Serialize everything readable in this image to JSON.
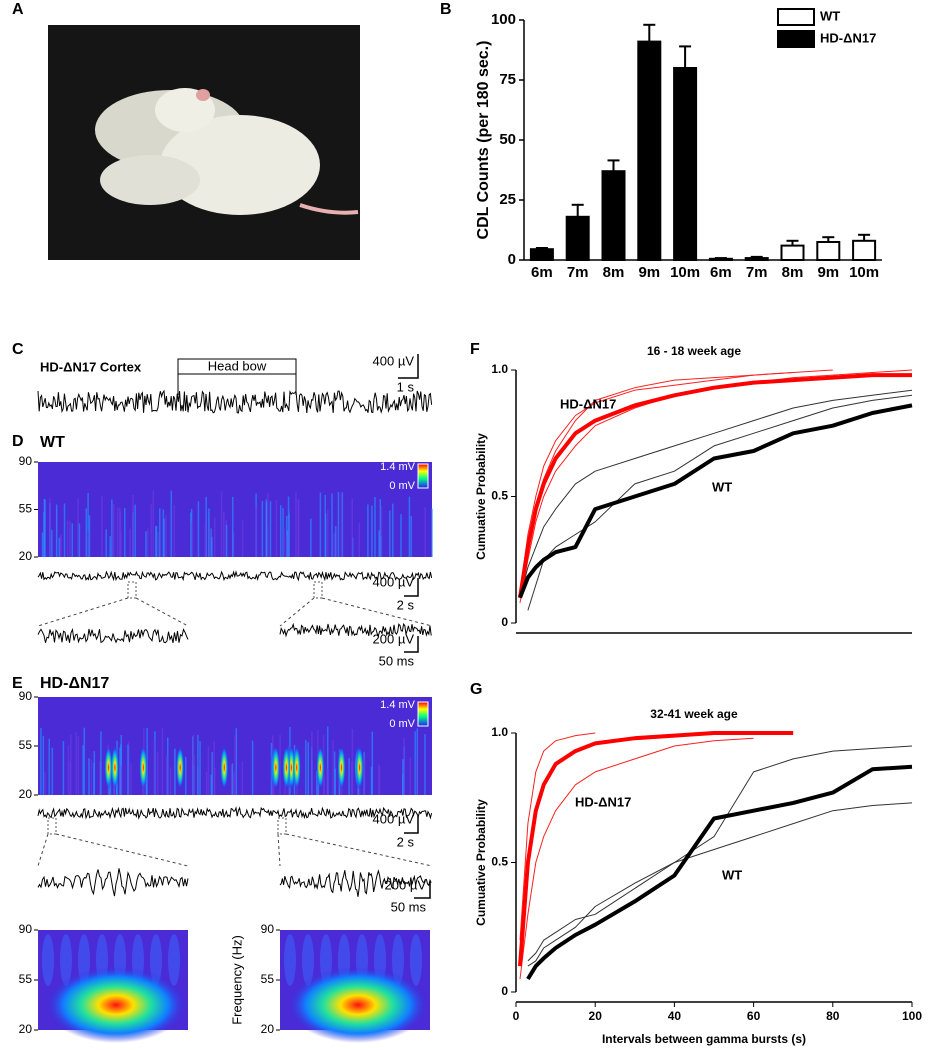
{
  "panel_labels": [
    "A",
    "B",
    "C",
    "D",
    "E",
    "F",
    "G"
  ],
  "panel_c": {
    "label": "HD-ΔN17 Cortex",
    "event": "Head bow",
    "scale_v": "400 µV",
    "scale_t": "1 s"
  },
  "panel_d": {
    "label": "WT",
    "freq_ticks": [
      "90",
      "55",
      "20"
    ],
    "colorbar": [
      "1.4 mV",
      "0 mV"
    ],
    "scale_v": "400 µV",
    "scale_t": "2 s",
    "zoom_scale_v": "200 µV",
    "zoom_scale_t": "50 ms"
  },
  "panel_e": {
    "label": "HD-ΔN17",
    "freq_ticks": [
      "90",
      "55",
      "20"
    ],
    "colorbar": [
      "1.4 mV",
      "0 mV"
    ],
    "scale_v": "400 µV",
    "scale_t": "2 s",
    "zoom_scale_v": "200 µV",
    "zoom_scale_t": "50 ms",
    "small_spectrograms": [
      {
        "ticks": [
          "90",
          "55",
          "20"
        ]
      },
      {
        "ticks": [
          "90",
          "55",
          "20"
        ],
        "ylabel": "Frequency (Hz)"
      }
    ]
  },
  "chart_data": [
    {
      "type": "bar",
      "ylabel": "CDL Counts (per 180 sec.)",
      "categories": [
        "6m",
        "7m",
        "8m",
        "9m",
        "10m",
        "6m",
        "7m",
        "8m",
        "9m",
        "10m"
      ],
      "series": [
        {
          "name": "WT",
          "color": "#ffffff",
          "values": [
            null,
            null,
            null,
            null,
            null,
            0.5,
            0.8,
            6,
            7.5,
            8
          ],
          "errors": [
            null,
            null,
            null,
            null,
            null,
            0.3,
            0.5,
            2,
            2,
            2.5
          ]
        },
        {
          "name": "HD-ΔN17",
          "color": "#000000",
          "values": [
            4.5,
            18,
            37,
            91,
            80,
            null,
            null,
            null,
            null,
            null
          ],
          "errors": [
            0.5,
            5,
            4.5,
            7,
            9,
            null,
            null,
            null,
            null,
            null
          ]
        }
      ],
      "ylim": [
        0,
        100
      ],
      "yticks": [
        0,
        25,
        50,
        75,
        100
      ]
    },
    {
      "type": "line",
      "title": "16 - 18 week age",
      "ylabel": "Cumuative Probability",
      "annotations": [
        "HD-ΔN17",
        "WT"
      ],
      "x": [
        1,
        3,
        5,
        7,
        10,
        15,
        20,
        30,
        40,
        50,
        60,
        70,
        80,
        90,
        100
      ],
      "series": [
        {
          "color": "#ff2020",
          "width": 1,
          "values": [
            0.12,
            0.35,
            0.5,
            0.62,
            0.72,
            0.82,
            0.87,
            0.92,
            0.94,
            0.96,
            0.98,
            0.99,
            1.0,
            null,
            null
          ]
        },
        {
          "color": "#ff2020",
          "width": 1,
          "values": [
            0.08,
            0.25,
            0.4,
            0.5,
            0.6,
            0.7,
            0.78,
            0.85,
            0.9,
            0.93,
            0.95,
            0.97,
            0.98,
            0.99,
            1.0
          ]
        },
        {
          "color": "#ff2020",
          "width": 1,
          "values": [
            0.1,
            0.33,
            0.47,
            0.57,
            0.68,
            0.8,
            0.88,
            0.93,
            0.96,
            0.97,
            0.98,
            0.99,
            null,
            null,
            null
          ]
        },
        {
          "color": "#333333",
          "width": 1,
          "values": [
            0.1,
            0.22,
            0.3,
            0.38,
            0.45,
            0.55,
            0.6,
            0.65,
            0.7,
            0.75,
            0.8,
            0.85,
            0.88,
            0.9,
            0.92
          ]
        },
        {
          "color": "#333333",
          "width": 1,
          "values": [
            null,
            0.05,
            0.15,
            0.25,
            0.3,
            0.35,
            0.4,
            0.55,
            0.6,
            0.7,
            0.75,
            0.8,
            0.85,
            0.88,
            0.9
          ]
        },
        {
          "color": "#ff0000",
          "width": 4,
          "values": [
            0.1,
            0.3,
            0.45,
            0.55,
            0.65,
            0.75,
            0.8,
            0.86,
            0.9,
            0.93,
            0.95,
            0.96,
            0.97,
            0.98,
            0.98
          ]
        },
        {
          "color": "#000000",
          "width": 4,
          "values": [
            0.1,
            0.18,
            0.22,
            0.25,
            0.28,
            0.3,
            0.45,
            0.5,
            0.55,
            0.65,
            0.68,
            0.75,
            0.78,
            0.83,
            0.86
          ]
        }
      ],
      "xlim": [
        0,
        100
      ],
      "ylim": [
        0,
        1
      ],
      "yticks": [
        0,
        0.5,
        {
          "value": 1,
          "label": "1.0"
        }
      ]
    },
    {
      "type": "line",
      "title": "32-41 week age",
      "ylabel": "Cumuative Probability",
      "xlabel": "Intervals between gamma bursts (s)",
      "annotations": [
        "HD-ΔN17",
        "WT"
      ],
      "x": [
        1,
        3,
        5,
        7,
        10,
        15,
        20,
        30,
        40,
        50,
        60,
        70,
        80,
        90,
        100
      ],
      "series": [
        {
          "color": "#ff2020",
          "width": 1,
          "values": [
            0.2,
            0.65,
            0.85,
            0.93,
            0.97,
            0.99,
            1,
            null,
            null,
            null,
            null,
            null,
            null,
            null,
            null
          ]
        },
        {
          "color": "#ff2020",
          "width": 1,
          "values": [
            0.05,
            0.3,
            0.5,
            0.6,
            0.7,
            0.8,
            0.85,
            0.9,
            0.95,
            0.97,
            0.98,
            null,
            null,
            null,
            null
          ]
        },
        {
          "color": "#333333",
          "width": 1,
          "values": [
            null,
            0.12,
            0.15,
            0.2,
            0.23,
            0.28,
            0.3,
            0.4,
            0.5,
            0.6,
            0.85,
            0.9,
            0.93,
            0.94,
            0.95
          ]
        },
        {
          "color": "#333333",
          "width": 1,
          "values": [
            null,
            0.1,
            0.12,
            0.17,
            0.2,
            0.25,
            0.33,
            0.42,
            0.5,
            0.55,
            0.6,
            0.65,
            0.7,
            0.72,
            0.73
          ]
        },
        {
          "color": "#ff0000",
          "width": 4,
          "values": [
            0.1,
            0.5,
            0.7,
            0.8,
            0.88,
            0.93,
            0.96,
            0.98,
            0.99,
            1,
            1,
            1,
            null,
            null,
            null
          ]
        },
        {
          "color": "#000000",
          "width": 4,
          "values": [
            null,
            0.05,
            0.1,
            0.13,
            0.17,
            0.22,
            0.26,
            0.35,
            0.45,
            0.67,
            0.7,
            0.73,
            0.77,
            0.86,
            0.87
          ]
        }
      ],
      "xlim": [
        0,
        100
      ],
      "ylim": [
        0,
        1
      ],
      "xticks": [
        0,
        20,
        40,
        60,
        80,
        100
      ],
      "yticks": [
        0,
        0.5,
        {
          "value": 1,
          "label": "1.0"
        }
      ]
    }
  ]
}
